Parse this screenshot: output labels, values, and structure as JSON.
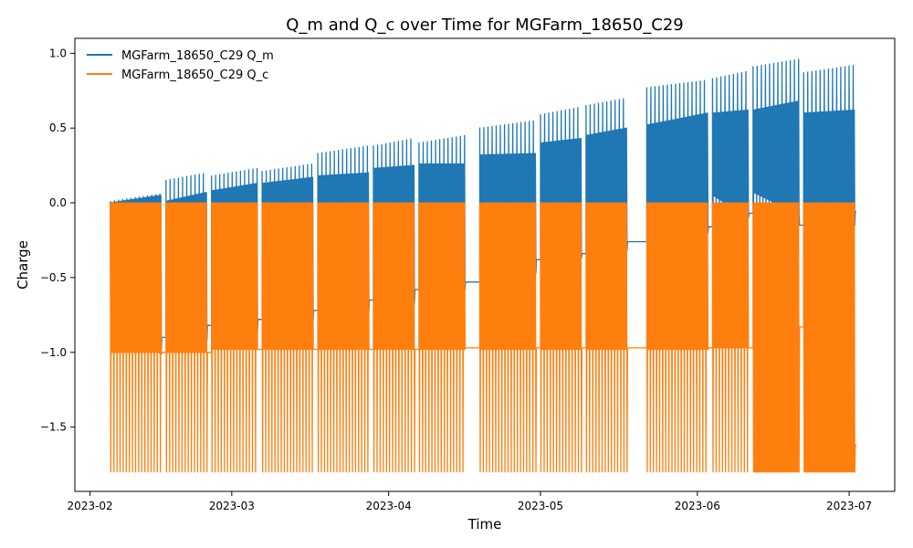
{
  "chart_data": {
    "type": "line",
    "title": "Q_m and Q_c over Time for MGFarm_18650_C29",
    "xlabel": "Time",
    "ylabel": "Charge",
    "xlim": [
      "2023-01-29",
      "2023-07-10"
    ],
    "ylim": [
      -1.93,
      1.1
    ],
    "x_ticks": [
      "2023-02",
      "2023-03",
      "2023-04",
      "2023-05",
      "2023-06",
      "2023-07"
    ],
    "y_ticks": [
      {
        "value": 1.0,
        "label": "1.0"
      },
      {
        "value": 0.5,
        "label": "0.5"
      },
      {
        "value": 0.0,
        "label": "0.0"
      },
      {
        "value": -0.5,
        "label": "−0.5"
      },
      {
        "value": -1.0,
        "label": "−1.0"
      },
      {
        "value": -1.5,
        "label": "−1.5"
      }
    ],
    "grid": false,
    "legend_position": "top-left",
    "series": [
      {
        "name": "MGFarm_18650_C29 Q_m",
        "color": "#1f77b4",
        "blocks": [
          {
            "start": "2023-02-05",
            "end": "2023-02-15",
            "low": -1.01,
            "high_start": 0.0,
            "high_end": 0.05,
            "spike": 0.06,
            "baseline_after": -0.9
          },
          {
            "start": "2023-02-16",
            "end": "2023-02-24",
            "low": -0.9,
            "high_start": 0.01,
            "high_end": 0.07,
            "spike": 0.2,
            "baseline_after": -0.82
          },
          {
            "start": "2023-02-25",
            "end": "2023-03-06",
            "low": -0.85,
            "high_start": 0.08,
            "high_end": 0.13,
            "spike": 0.23,
            "baseline_after": -0.78
          },
          {
            "start": "2023-03-07",
            "end": "2023-03-17",
            "low": -0.78,
            "high_start": 0.13,
            "high_end": 0.17,
            "spike": 0.26,
            "baseline_after": -0.72
          },
          {
            "start": "2023-03-18",
            "end": "2023-03-28",
            "low": -0.72,
            "high_start": 0.18,
            "high_end": 0.2,
            "spike": 0.38,
            "baseline_after": -0.65
          },
          {
            "start": "2023-03-29",
            "end": "2023-04-06",
            "low": -0.65,
            "high_start": 0.23,
            "high_end": 0.25,
            "spike": 0.43,
            "baseline_after": -0.58
          },
          {
            "start": "2023-04-07",
            "end": "2023-04-16",
            "low": -0.58,
            "high_start": 0.26,
            "high_end": 0.26,
            "spike": 0.45,
            "baseline_after": -0.53
          },
          {
            "start": "2023-04-19",
            "end": "2023-04-30",
            "low": -0.45,
            "high_start": 0.32,
            "high_end": 0.33,
            "spike": 0.55,
            "baseline_after": -0.38
          },
          {
            "start": "2023-05-01",
            "end": "2023-05-09",
            "low": -0.35,
            "high_start": 0.4,
            "high_end": 0.43,
            "spike": 0.64,
            "baseline_after": -0.34
          },
          {
            "start": "2023-05-10",
            "end": "2023-05-18",
            "low": -0.3,
            "high_start": 0.45,
            "high_end": 0.5,
            "spike": 0.7,
            "baseline_after": -0.26
          },
          {
            "start": "2023-05-22",
            "end": "2023-06-03",
            "low": -0.2,
            "high_start": 0.52,
            "high_end": 0.6,
            "spike": 0.82,
            "baseline_after": -0.16
          },
          {
            "start": "2023-06-04",
            "end": "2023-06-11",
            "low": -0.1,
            "high_start": 0.6,
            "high_end": 0.62,
            "spike": 0.88,
            "baseline_after": -0.07
          },
          {
            "start": "2023-06-12",
            "end": "2023-06-21",
            "low": -0.08,
            "high_start": 0.62,
            "high_end": 0.68,
            "spike": 0.96,
            "baseline_after": -0.15
          },
          {
            "start": "2023-06-22",
            "end": "2023-07-02",
            "low": -0.15,
            "high_start": 0.6,
            "high_end": 0.62,
            "spike": 0.92,
            "baseline_after": -0.06
          }
        ]
      },
      {
        "name": "MGFarm_18650_C29 Q_c",
        "color": "#ff7f0e",
        "blocks": [
          {
            "start": "2023-02-05",
            "end": "2023-02-15",
            "high": 0.0,
            "low": -1.0,
            "deep": -1.8,
            "baseline_after": -1.0
          },
          {
            "start": "2023-02-16",
            "end": "2023-02-24",
            "high": 0.0,
            "low": -1.0,
            "deep": -1.8,
            "baseline_after": -1.0
          },
          {
            "start": "2023-02-25",
            "end": "2023-03-06",
            "high": 0.0,
            "low": -0.98,
            "deep": -1.8,
            "baseline_after": -0.98
          },
          {
            "start": "2023-03-07",
            "end": "2023-03-17",
            "high": 0.0,
            "low": -0.98,
            "deep": -1.8,
            "baseline_after": -0.98
          },
          {
            "start": "2023-03-18",
            "end": "2023-03-28",
            "high": 0.0,
            "low": -0.98,
            "deep": -1.8,
            "baseline_after": -0.98
          },
          {
            "start": "2023-03-29",
            "end": "2023-04-06",
            "high": 0.0,
            "low": -0.98,
            "deep": -1.8,
            "baseline_after": -0.98
          },
          {
            "start": "2023-04-07",
            "end": "2023-04-16",
            "high": 0.0,
            "low": -0.98,
            "deep": -1.8,
            "baseline_after": -0.97
          },
          {
            "start": "2023-04-19",
            "end": "2023-04-30",
            "high": 0.0,
            "low": -0.98,
            "deep": -1.8,
            "baseline_after": -0.97
          },
          {
            "start": "2023-05-01",
            "end": "2023-05-09",
            "high": 0.0,
            "low": -0.98,
            "deep": -1.8,
            "baseline_after": -0.97
          },
          {
            "start": "2023-05-10",
            "end": "2023-05-18",
            "high": 0.0,
            "low": -0.98,
            "deep": -1.8,
            "baseline_after": -0.97
          },
          {
            "start": "2023-05-22",
            "end": "2023-06-03",
            "high": 0.0,
            "low": -0.98,
            "deep": -1.8,
            "baseline_after": -0.97
          },
          {
            "start": "2023-06-04",
            "end": "2023-06-11",
            "high": 0.0,
            "low": -0.97,
            "deep": -1.8,
            "baseline_after": -0.97
          },
          {
            "start": "2023-06-12",
            "end": "2023-06-21",
            "high": 0.0,
            "low": -1.8,
            "deep": -1.8,
            "baseline_after": -0.83
          },
          {
            "start": "2023-06-22",
            "end": "2023-07-02",
            "high": 0.0,
            "low": -1.8,
            "deep": -1.8,
            "baseline_after": -1.62
          }
        ]
      }
    ]
  }
}
